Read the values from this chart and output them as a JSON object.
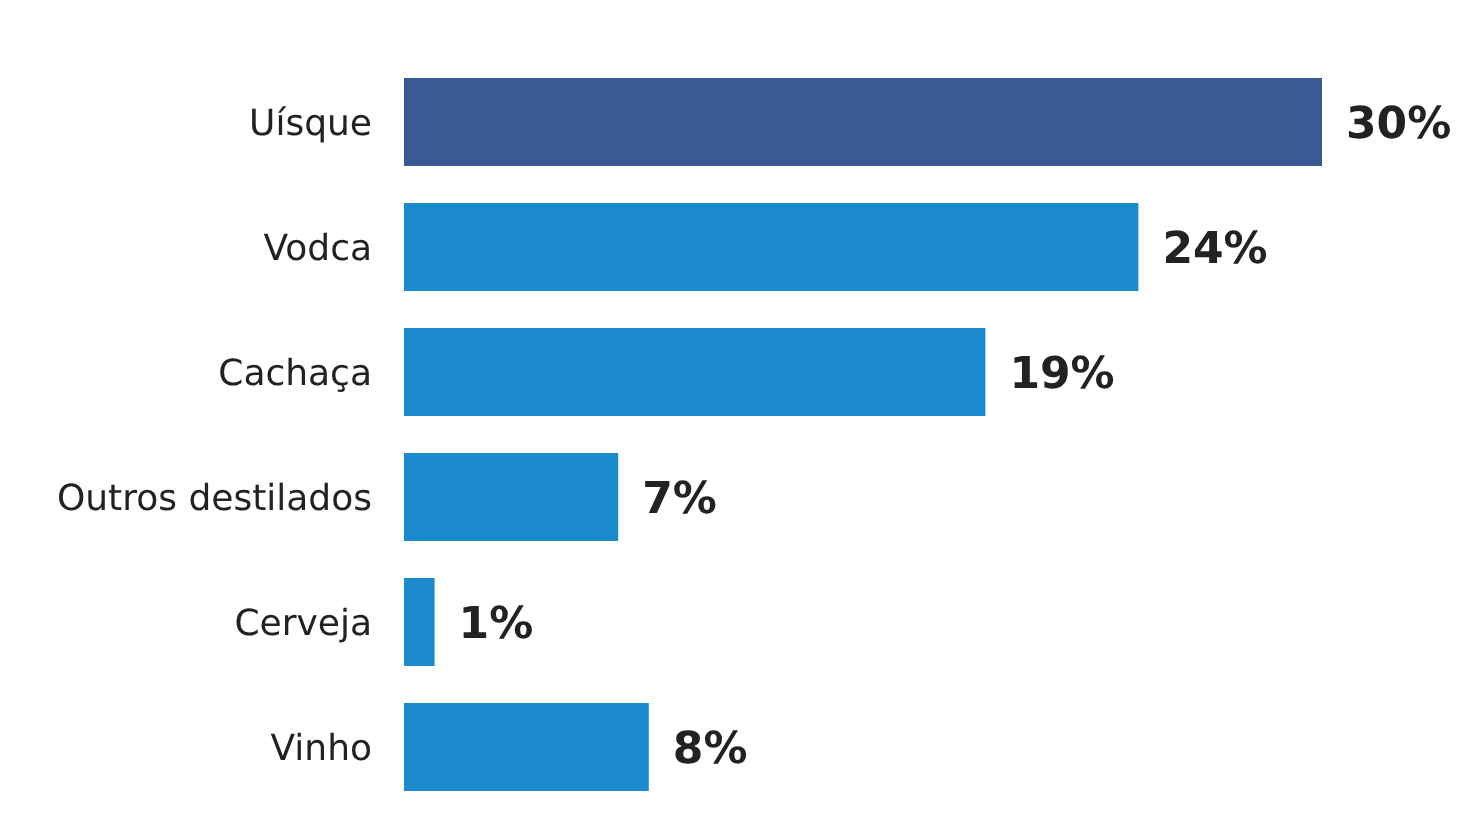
{
  "chart_data": {
    "type": "bar",
    "orientation": "horizontal",
    "categories": [
      "Uísque",
      "Vodca",
      "Cachaça",
      "Outros destilados",
      "Cerveja",
      "Vinho"
    ],
    "values": [
      30,
      24,
      19,
      7,
      1,
      8
    ],
    "colors": [
      "#3a5a93",
      "#1b8bcd",
      "#1b8bcd",
      "#1b8bcd",
      "#1b8bcd",
      "#1b8bcd"
    ],
    "value_labels": [
      "30%",
      "24%",
      "19%",
      "7%",
      "1%",
      "8%"
    ]
  }
}
